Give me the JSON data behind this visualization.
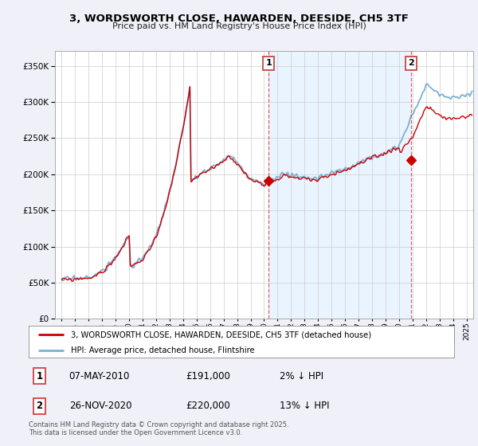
{
  "title": "3, WORDSWORTH CLOSE, HAWARDEN, DEESIDE, CH5 3TF",
  "subtitle": "Price paid vs. HM Land Registry's House Price Index (HPI)",
  "legend_line1": "3, WORDSWORTH CLOSE, HAWARDEN, DEESIDE, CH5 3TF (detached house)",
  "legend_line2": "HPI: Average price, detached house, Flintshire",
  "annotation1_date": "07-MAY-2010",
  "annotation1_price": "£191,000",
  "annotation1_hpi": "2% ↓ HPI",
  "annotation2_date": "26-NOV-2020",
  "annotation2_price": "£220,000",
  "annotation2_hpi": "13% ↓ HPI",
  "sale1_x": 2010.35,
  "sale2_x": 2020.9,
  "sale1_y": 191000,
  "sale2_y": 220000,
  "hpi_color": "#7ab0d4",
  "price_color": "#cc0000",
  "vline_color": "#cc4444",
  "shade_color": "#ddeeff",
  "background_color": "#f0f0f8",
  "plot_bg_color": "#ffffff",
  "footer": "Contains HM Land Registry data © Crown copyright and database right 2025.\nThis data is licensed under the Open Government Licence v3.0.",
  "ylim": [
    0,
    370000
  ],
  "yticks": [
    0,
    50000,
    100000,
    150000,
    200000,
    250000,
    300000,
    350000
  ],
  "xlim": [
    1994.5,
    2025.5
  ]
}
